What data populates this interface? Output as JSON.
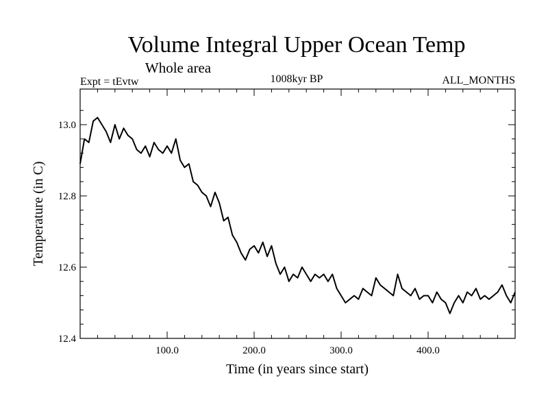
{
  "chart_data": {
    "type": "line",
    "title": "Volume Integral Upper Ocean Temp",
    "subtitle": "Whole area",
    "left_label": "Expt = tEvtw",
    "center_label": "1008kyr BP",
    "right_label": "ALL_MONTHS",
    "xlabel": "Time (in years since start)",
    "ylabel": "Temperature (in C)",
    "xlim": [
      0,
      500
    ],
    "ylim": [
      12.4,
      13.1
    ],
    "x_ticks": [
      {
        "value": 100,
        "label": "100.0"
      },
      {
        "value": 200,
        "label": "200.0"
      },
      {
        "value": 300,
        "label": "300.0"
      },
      {
        "value": 400,
        "label": "400.0"
      }
    ],
    "y_ticks": [
      {
        "value": 12.4,
        "label": "12.4"
      },
      {
        "value": 12.6,
        "label": "12.6"
      },
      {
        "value": 12.8,
        "label": "12.8"
      },
      {
        "value": 13.0,
        "label": "13.0"
      }
    ],
    "series": [
      {
        "name": "Volume integral upper ocean temperature",
        "color": "#000000",
        "x": [
          0,
          5,
          10,
          15,
          20,
          25,
          30,
          35,
          40,
          45,
          50,
          55,
          60,
          65,
          70,
          75,
          80,
          85,
          90,
          95,
          100,
          105,
          110,
          115,
          120,
          125,
          130,
          135,
          140,
          145,
          150,
          155,
          160,
          165,
          170,
          175,
          180,
          185,
          190,
          195,
          200,
          205,
          210,
          215,
          220,
          225,
          230,
          235,
          240,
          245,
          250,
          255,
          260,
          265,
          270,
          275,
          280,
          285,
          290,
          295,
          300,
          305,
          310,
          315,
          320,
          325,
          330,
          335,
          340,
          345,
          350,
          355,
          360,
          365,
          370,
          375,
          380,
          385,
          390,
          395,
          400,
          405,
          410,
          415,
          420,
          425,
          430,
          435,
          440,
          445,
          450,
          455,
          460,
          465,
          470,
          475,
          480,
          485,
          490,
          495,
          500
        ],
        "values": [
          12.89,
          12.96,
          12.95,
          13.01,
          13.02,
          13.0,
          12.98,
          12.95,
          13.0,
          12.96,
          12.99,
          12.97,
          12.96,
          12.93,
          12.92,
          12.94,
          12.91,
          12.95,
          12.93,
          12.92,
          12.94,
          12.92,
          12.96,
          12.9,
          12.88,
          12.89,
          12.84,
          12.83,
          12.81,
          12.8,
          12.77,
          12.81,
          12.78,
          12.73,
          12.74,
          12.69,
          12.67,
          12.64,
          12.62,
          12.65,
          12.66,
          12.64,
          12.67,
          12.63,
          12.66,
          12.61,
          12.58,
          12.6,
          12.56,
          12.58,
          12.57,
          12.6,
          12.58,
          12.56,
          12.58,
          12.57,
          12.58,
          12.56,
          12.58,
          12.54,
          12.52,
          12.5,
          12.51,
          12.52,
          12.51,
          12.54,
          12.53,
          12.52,
          12.57,
          12.55,
          12.54,
          12.53,
          12.52,
          12.58,
          12.54,
          12.53,
          12.52,
          12.54,
          12.51,
          12.52,
          12.52,
          12.5,
          12.53,
          12.51,
          12.5,
          12.47,
          12.5,
          12.52,
          12.5,
          12.53,
          12.52,
          12.54,
          12.51,
          12.52,
          12.51,
          12.52,
          12.53,
          12.55,
          12.52,
          12.5,
          12.53
        ]
      }
    ]
  }
}
